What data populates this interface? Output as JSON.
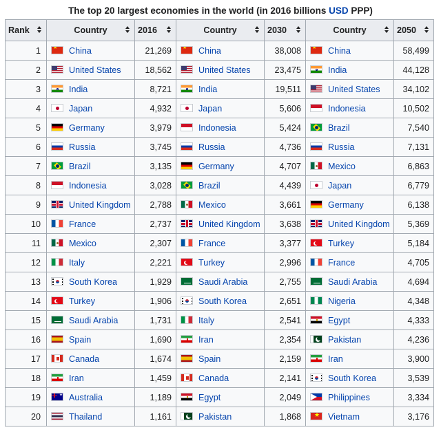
{
  "caption": {
    "prefix": "The top 20 largest economies in the world (in 2016 billions ",
    "link": "USD",
    "suffix": " PPP)"
  },
  "headers": [
    "Rank",
    "Country",
    "2016",
    "Country",
    "2030",
    "Country",
    "2050"
  ],
  "icons": {
    "sort": "sort-arrows-icon"
  },
  "colors": {
    "link": "#0645ad",
    "header_bg": "#eaecf0",
    "cell_bg": "#f8f9fa",
    "border": "#a2a9b1"
  },
  "rows": [
    {
      "rank": "1",
      "c2016": "China",
      "v2016": "21,269",
      "c2030": "China",
      "v2030": "38,008",
      "c2050": "China",
      "v2050": "58,499"
    },
    {
      "rank": "2",
      "c2016": "United States",
      "v2016": "18,562",
      "c2030": "United States",
      "v2030": "23,475",
      "c2050": "India",
      "v2050": "44,128"
    },
    {
      "rank": "3",
      "c2016": "India",
      "v2016": "8,721",
      "c2030": "India",
      "v2030": "19,511",
      "c2050": "United States",
      "v2050": "34,102"
    },
    {
      "rank": "4",
      "c2016": "Japan",
      "v2016": "4,932",
      "c2030": "Japan",
      "v2030": "5,606",
      "c2050": "Indonesia",
      "v2050": "10,502"
    },
    {
      "rank": "5",
      "c2016": "Germany",
      "v2016": "3,979",
      "c2030": "Indonesia",
      "v2030": "5,424",
      "c2050": "Brazil",
      "v2050": "7,540"
    },
    {
      "rank": "6",
      "c2016": "Russia",
      "v2016": "3,745",
      "c2030": "Russia",
      "v2030": "4,736",
      "c2050": "Russia",
      "v2050": "7,131"
    },
    {
      "rank": "7",
      "c2016": "Brazil",
      "v2016": "3,135",
      "c2030": "Germany",
      "v2030": "4,707",
      "c2050": "Mexico",
      "v2050": "6,863"
    },
    {
      "rank": "8",
      "c2016": "Indonesia",
      "v2016": "3,028",
      "c2030": "Brazil",
      "v2030": "4,439",
      "c2050": "Japan",
      "v2050": "6,779"
    },
    {
      "rank": "9",
      "c2016": "United Kingdom",
      "v2016": "2,788",
      "c2030": "Mexico",
      "v2030": "3,661",
      "c2050": "Germany",
      "v2050": "6,138"
    },
    {
      "rank": "10",
      "c2016": "France",
      "v2016": "2,737",
      "c2030": "United Kingdom",
      "v2030": "3,638",
      "c2050": "United Kingdom",
      "v2050": "5,369"
    },
    {
      "rank": "11",
      "c2016": "Mexico",
      "v2016": "2,307",
      "c2030": "France",
      "v2030": "3,377",
      "c2050": "Turkey",
      "v2050": "5,184"
    },
    {
      "rank": "12",
      "c2016": "Italy",
      "v2016": "2,221",
      "c2030": "Turkey",
      "v2030": "2,996",
      "c2050": "France",
      "v2050": "4,705"
    },
    {
      "rank": "13",
      "c2016": "South Korea",
      "v2016": "1,929",
      "c2030": "Saudi Arabia",
      "v2030": "2,755",
      "c2050": "Saudi Arabia",
      "v2050": "4,694"
    },
    {
      "rank": "14",
      "c2016": "Turkey",
      "v2016": "1,906",
      "c2030": "South Korea",
      "v2030": "2,651",
      "c2050": "Nigeria",
      "v2050": "4,348"
    },
    {
      "rank": "15",
      "c2016": "Saudi Arabia",
      "v2016": "1,731",
      "c2030": "Italy",
      "v2030": "2,541",
      "c2050": "Egypt",
      "v2050": "4,333"
    },
    {
      "rank": "16",
      "c2016": "Spain",
      "v2016": "1,690",
      "c2030": "Iran",
      "v2030": "2,354",
      "c2050": "Pakistan",
      "v2050": "4,236"
    },
    {
      "rank": "17",
      "c2016": "Canada",
      "v2016": "1,674",
      "c2030": "Spain",
      "v2030": "2,159",
      "c2050": "Iran",
      "v2050": "3,900"
    },
    {
      "rank": "18",
      "c2016": "Iran",
      "v2016": "1,459",
      "c2030": "Canada",
      "v2030": "2,141",
      "c2050": "South Korea",
      "v2050": "3,539"
    },
    {
      "rank": "19",
      "c2016": "Australia",
      "v2016": "1,189",
      "c2030": "Egypt",
      "v2030": "2,049",
      "c2050": "Philippines",
      "v2050": "3,334"
    },
    {
      "rank": "20",
      "c2016": "Thailand",
      "v2016": "1,161",
      "c2030": "Pakistan",
      "v2030": "1,868",
      "c2050": "Vietnam",
      "v2050": "3,176"
    }
  ]
}
